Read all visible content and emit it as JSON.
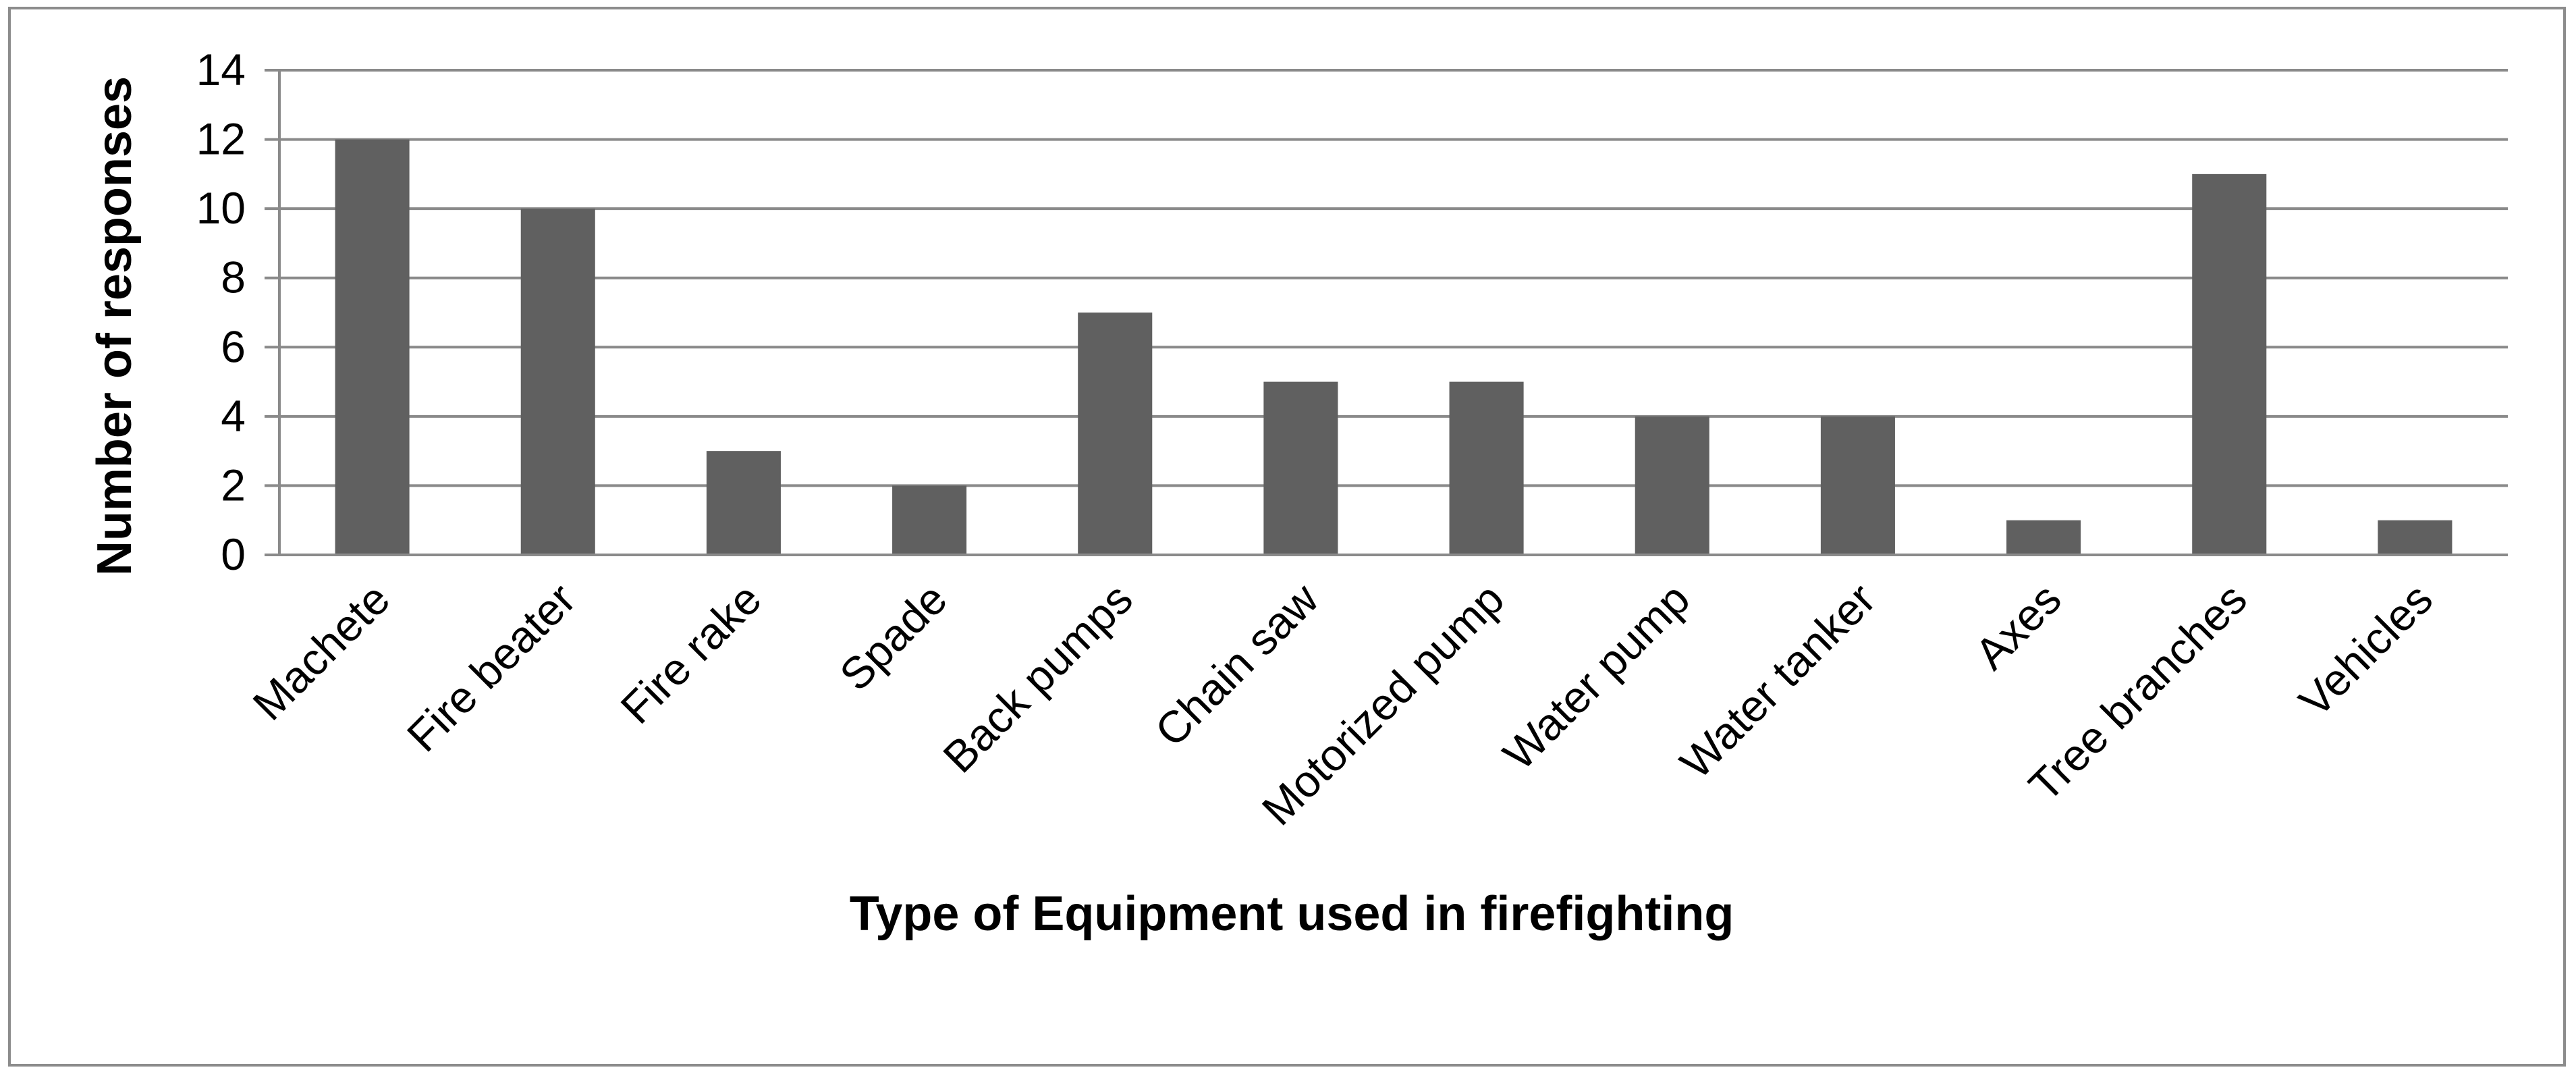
{
  "chart_data": {
    "type": "bar",
    "title": "",
    "xlabel": "Type of Equipment used in firefighting",
    "ylabel": "Number of responses",
    "categories": [
      "Machete",
      "Fire beater",
      "Fire rake",
      "Spade",
      "Back pumps",
      "Chain saw",
      "Motorized pump",
      "Water pump",
      "Water tanker",
      "Axes",
      "Tree branches",
      "Vehicles"
    ],
    "values": [
      12,
      10,
      3,
      2,
      7,
      5,
      5,
      4,
      4,
      1,
      11,
      1
    ],
    "ylim": [
      0,
      14
    ],
    "yticks": [
      "0",
      "2",
      "4",
      "6",
      "8",
      "10",
      "12",
      "14"
    ],
    "grid": true,
    "legend": "none",
    "bar_color": "#606060",
    "gridline_color": "#8a8a8a"
  }
}
